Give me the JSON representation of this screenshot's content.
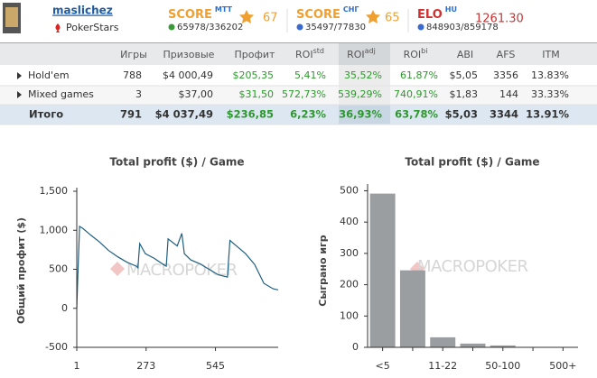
{
  "header": {
    "username": "maslichez",
    "room": "PokerStars",
    "scores": [
      {
        "label": "SCORE",
        "sup": "MTT",
        "value": "67",
        "rank": "65978/336202"
      },
      {
        "label": "SCORE",
        "sup": "СНГ",
        "value": "65",
        "rank": "35497/77830"
      },
      {
        "label": "ELO",
        "sup": "HU",
        "value": "1261.30",
        "rank": "848903/859178"
      }
    ]
  },
  "table": {
    "columns": [
      {
        "text": "Игры"
      },
      {
        "text": "Призовые"
      },
      {
        "text": "Профит"
      },
      {
        "text": "ROI",
        "sup": "std"
      },
      {
        "text": "ROI",
        "sup": "adj"
      },
      {
        "text": "ROI",
        "sup": "bi"
      },
      {
        "text": "ABI"
      },
      {
        "text": "AFS"
      },
      {
        "text": "ITM"
      }
    ],
    "rows": [
      [
        "Hold'em",
        "788",
        "$4 000,49",
        "$205,35",
        "5,41%",
        "35,52%",
        "61,87%",
        "$5,05",
        "3356",
        "13.83%"
      ],
      [
        "Mixed games",
        "3",
        "$37,00",
        "$31,50",
        "572,73%",
        "539,29%",
        "740,91%",
        "$1,83",
        "144",
        "33.33%"
      ],
      [
        "Итого",
        "791",
        "$4 037,49",
        "$236,85",
        "6,23%",
        "36,93%",
        "63,78%",
        "$5,03",
        "3344",
        "13.91%"
      ]
    ]
  },
  "chart_data": [
    {
      "type": "line",
      "title": "Total profit ($) / Game",
      "ylabel": "Общий профит ($)",
      "watermark": "MACROPOKER",
      "color": "#1f5f80",
      "x": [
        1,
        5,
        12,
        26,
        55,
        90,
        126,
        162,
        198,
        234,
        241,
        248,
        270,
        305,
        341,
        352,
        359,
        395,
        413,
        423,
        448,
        484,
        520,
        556,
        592,
        602,
        627,
        663,
        699,
        735,
        771,
        789,
        791
      ],
      "values": [
        0,
        400,
        1050,
        1020,
        940,
        850,
        740,
        660,
        590,
        540,
        520,
        830,
        700,
        640,
        560,
        540,
        890,
        800,
        960,
        700,
        620,
        570,
        500,
        430,
        400,
        870,
        800,
        700,
        560,
        320,
        250,
        237,
        236.85
      ],
      "xlim": [
        1,
        791
      ],
      "xticks": [
        1,
        273,
        545
      ],
      "ylim": [
        -500,
        1500
      ],
      "yticks": [
        {
          "value": 1500,
          "label": "1,500"
        },
        {
          "value": 1000,
          "label": "1,000"
        },
        500,
        0,
        -500
      ]
    },
    {
      "type": "bar",
      "title": "Total profit ($) / Game",
      "ylabel": "Сыграно игр",
      "watermark": "MACROPOKER",
      "color": "#9a9ea0",
      "categories": [
        "<5",
        null,
        "11-22",
        null,
        "50-100",
        null,
        "500+"
      ],
      "values": [
        491,
        246,
        32,
        12,
        6,
        1,
        0
      ],
      "ylim": [
        0,
        510
      ],
      "yticks": [
        0,
        100,
        200,
        300,
        400,
        500
      ]
    }
  ]
}
